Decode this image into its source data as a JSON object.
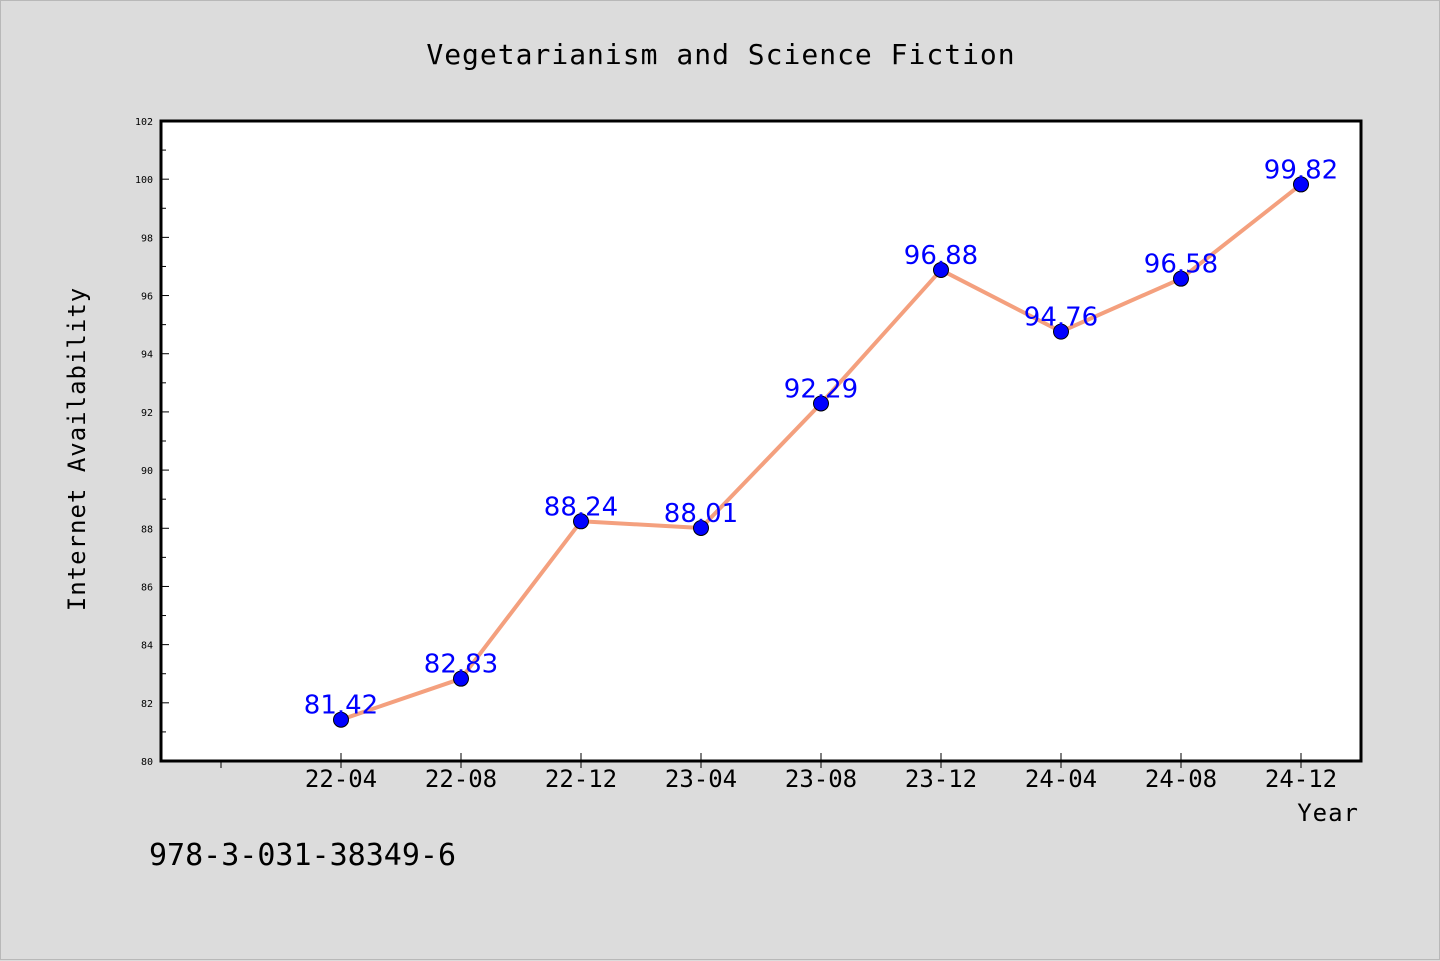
{
  "chart_data": {
    "type": "line",
    "title": "Vegetarianism and Science Fiction",
    "xlabel": "Year",
    "ylabel": "Internet Availability",
    "categories": [
      "22-04",
      "22-08",
      "22-12",
      "23-04",
      "23-08",
      "23-12",
      "24-04",
      "24-08",
      "24-12"
    ],
    "values": [
      81.42,
      82.83,
      88.24,
      88.01,
      92.29,
      96.88,
      94.76,
      96.58,
      99.82
    ],
    "ylim": [
      80,
      102
    ],
    "yticks": [
      80,
      82,
      84,
      86,
      88,
      90,
      92,
      94,
      96,
      98,
      100,
      102
    ],
    "grid": false,
    "legend": "none",
    "line_color": "#f4a07e",
    "marker_color": "#0000ff",
    "label_color": "#0000ff"
  },
  "footer": {
    "isbn": "978-3-031-38349-6"
  }
}
